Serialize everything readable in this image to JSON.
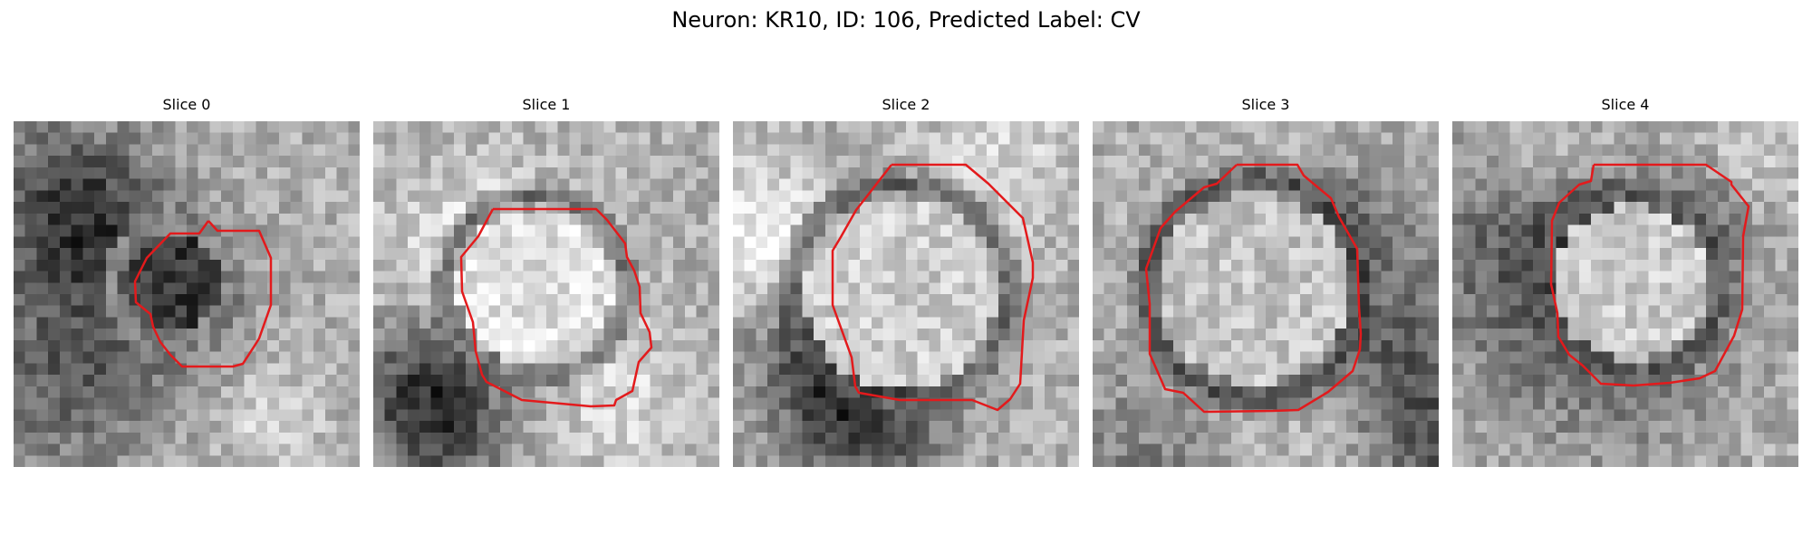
{
  "figure": {
    "title": "Neuron: KR10, ID: 106, Predicted Label: CV",
    "contour_color": "#e31a1c",
    "colormap": "gray",
    "grid_size": 30
  },
  "panels": [
    {
      "title": "Slice 0"
    },
    {
      "title": "Slice 1"
    },
    {
      "title": "Slice 2"
    },
    {
      "title": "Slice 3"
    },
    {
      "title": "Slice 4"
    }
  ]
}
